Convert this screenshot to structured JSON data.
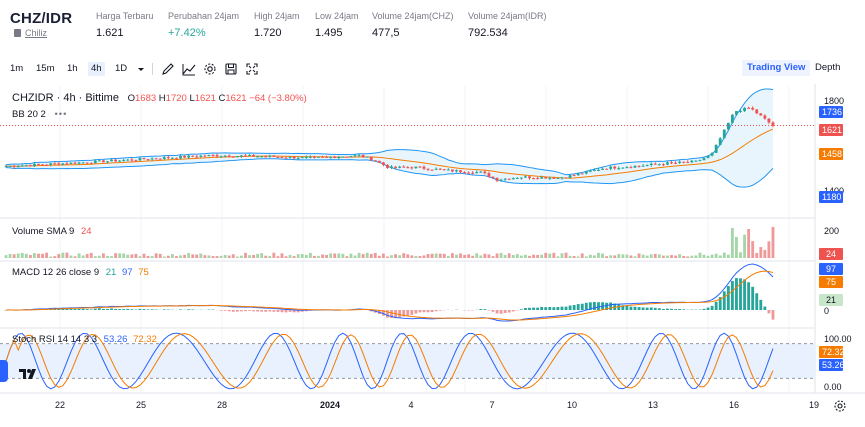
{
  "header": {
    "symbol": "CHZ/IDR",
    "coin_name": "Chiliz",
    "stats": [
      {
        "label": "Harga Terbaru",
        "value": "1.621",
        "tone": "normal"
      },
      {
        "label": "Perubahan 24jam",
        "value": "+7.42%",
        "tone": "up"
      },
      {
        "label": "High 24jam",
        "value": "1.720",
        "tone": "normal"
      },
      {
        "label": "Low 24jam",
        "value": "1.495",
        "tone": "normal"
      },
      {
        "label": "Volume 24jam(CHZ)",
        "value": "477,5",
        "tone": "normal"
      },
      {
        "label": "Volume 24jam(IDR)",
        "value": "792.534",
        "tone": "normal"
      }
    ]
  },
  "toolbar": {
    "intervals": [
      "1m",
      "15m",
      "1h",
      "4h",
      "1D"
    ],
    "active_interval": "4h",
    "icons": [
      "dropdown-caret-icon",
      "draw-pen-icon",
      "indicators-icon",
      "compare-icon",
      "settings-gear-icon",
      "snapshot-icon",
      "fullscreen-icon"
    ],
    "views": [
      "Trading View",
      "Depth"
    ],
    "active_view": "Trading View"
  },
  "legends": {
    "main": {
      "symbol": "CHZIDR · 4h · Bittime",
      "o_label": "O",
      "o": "1683",
      "h_label": "H",
      "h": "1720",
      "l_label": "L",
      "l": "1621",
      "c_label": "C",
      "c": "1621",
      "change": "−64 (−3.80%)"
    },
    "bb": {
      "name": "BB 20 2"
    },
    "volume": {
      "name": "Volume SMA 9",
      "value": "24"
    },
    "macd": {
      "name": "MACD 12 26 close 9",
      "hist": "21",
      "macd": "97",
      "signal": "75"
    },
    "stoch": {
      "name": "Stoch RSI 14 14 3 3",
      "k": "53.26",
      "d": "72.32"
    }
  },
  "price_axis": {
    "labels": [
      "1800",
      "1400"
    ],
    "tags": [
      {
        "value": "1736",
        "color": "#2962ff"
      },
      {
        "value": "1621",
        "color": "#ef5350"
      },
      {
        "value": "1458",
        "color": "#f57c00"
      },
      {
        "value": "1180",
        "color": "#2962ff"
      }
    ]
  },
  "volume_axis": {
    "labels": [
      "200"
    ],
    "tag": "24"
  },
  "macd_axis": {
    "labels": [
      "0"
    ],
    "tags": [
      "97",
      "75",
      "21"
    ]
  },
  "stoch_axis": {
    "labels": [
      "100.00",
      "0.00"
    ],
    "tags": [
      "72.32",
      "53.26"
    ]
  },
  "time_axis": [
    "22",
    "25",
    "28",
    "2024",
    "4",
    "7",
    "10",
    "13",
    "16",
    "19"
  ],
  "colors": {
    "up": "#26a69a",
    "down": "#ef5350",
    "bb_line": "#2196f3",
    "bb_fill": "#e3f2fd",
    "basis": "#f57c00",
    "macd": "#2962ff",
    "signal": "#f57c00",
    "stoch_k": "#2962ff",
    "stoch_d": "#f57c00"
  },
  "chart_data": {
    "type": "candlestick",
    "x_labels": [
      "22",
      "25",
      "28",
      "2024",
      "4",
      "7",
      "10",
      "13",
      "16",
      "19"
    ],
    "price_anchors": [
      {
        "t": 0,
        "v": 1395
      },
      {
        "t": 0.05,
        "v": 1405
      },
      {
        "t": 0.12,
        "v": 1420
      },
      {
        "t": 0.2,
        "v": 1440
      },
      {
        "t": 0.27,
        "v": 1455
      },
      {
        "t": 0.33,
        "v": 1450
      },
      {
        "t": 0.4,
        "v": 1440
      },
      {
        "t": 0.46,
        "v": 1455
      },
      {
        "t": 0.48,
        "v": 1430
      },
      {
        "t": 0.5,
        "v": 1385
      },
      {
        "t": 0.53,
        "v": 1390
      },
      {
        "t": 0.58,
        "v": 1370
      },
      {
        "t": 0.62,
        "v": 1360
      },
      {
        "t": 0.64,
        "v": 1320
      },
      {
        "t": 0.67,
        "v": 1335
      },
      {
        "t": 0.72,
        "v": 1330
      },
      {
        "t": 0.74,
        "v": 1345
      },
      {
        "t": 0.78,
        "v": 1385
      },
      {
        "t": 0.82,
        "v": 1395
      },
      {
        "t": 0.86,
        "v": 1410
      },
      {
        "t": 0.9,
        "v": 1420
      },
      {
        "t": 0.92,
        "v": 1460
      },
      {
        "t": 0.95,
        "v": 1700
      },
      {
        "t": 0.97,
        "v": 1720
      },
      {
        "t": 1.0,
        "v": 1621
      }
    ],
    "last": {
      "open": 1683,
      "high": 1720,
      "low": 1621,
      "close": 1621
    },
    "bb": {
      "upper_last": 1736,
      "basis_last": 1458,
      "lower_last": 1180
    },
    "volume_max": 200,
    "stoch_levels": [
      80,
      20
    ]
  }
}
